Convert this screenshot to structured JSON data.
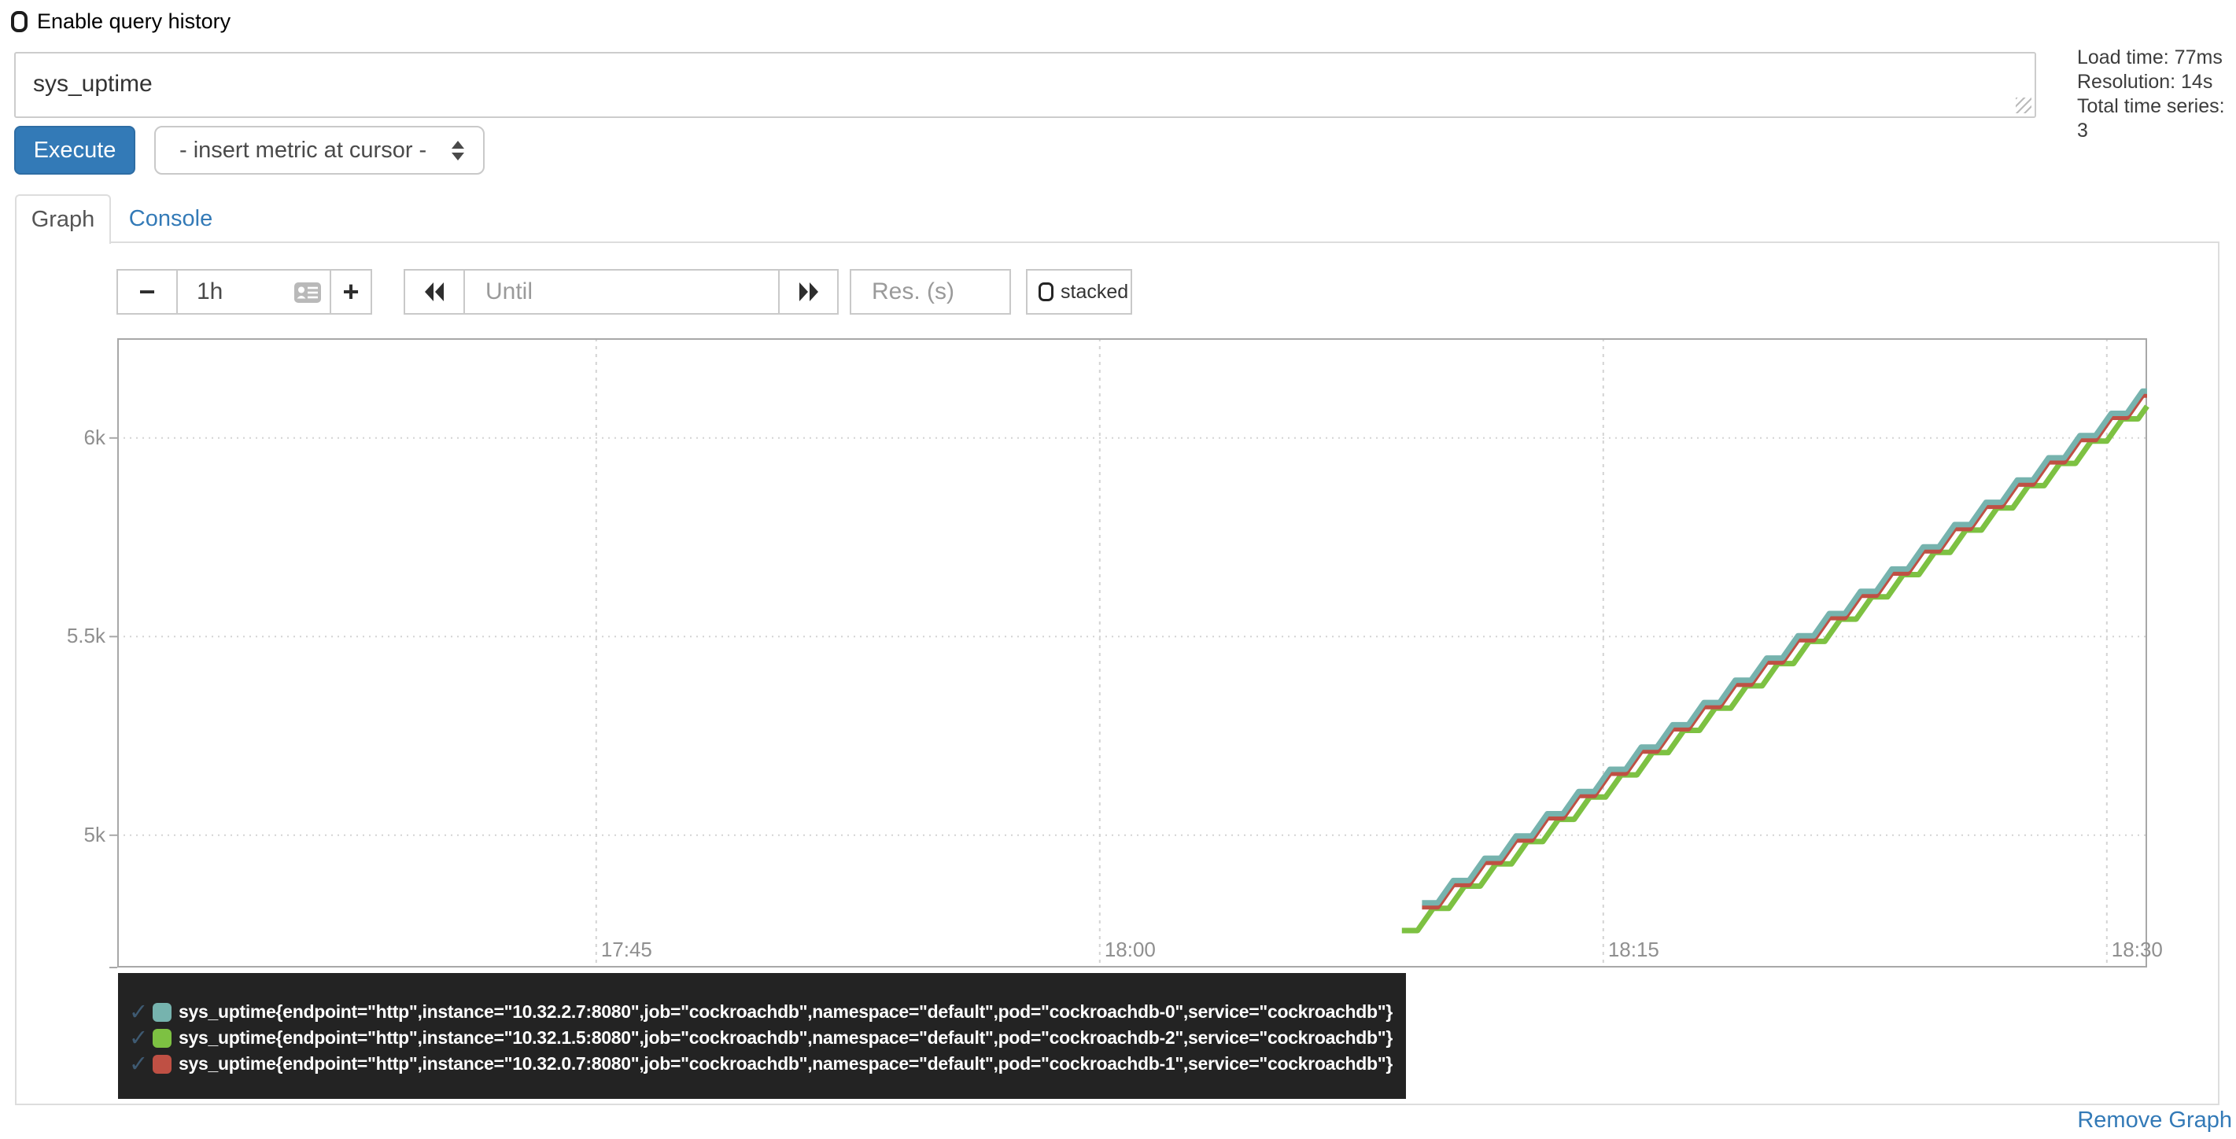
{
  "header": {
    "enable_query_history": {
      "label": "Enable query history",
      "checked": false
    },
    "query_input": {
      "value": "sys_uptime"
    },
    "stats": {
      "lines": [
        "Load time: 77ms",
        "Resolution: 14s",
        "Total time series: 3"
      ]
    }
  },
  "toolbar": {
    "execute": "Execute",
    "metric_select": "- insert metric at cursor -"
  },
  "tabs": {
    "items": [
      {
        "label": "Graph",
        "active": true
      },
      {
        "label": "Console",
        "active": false
      }
    ]
  },
  "graph_controls": {
    "range_decrease": "−",
    "range_value": "1h",
    "range_increase": "+",
    "until_placeholder": "Until",
    "res_placeholder": "Res. (s)",
    "stacked": {
      "label": "stacked",
      "checked": false
    }
  },
  "footer": {
    "remove_graph": "Remove Graph"
  },
  "icons": {
    "checkbox_unchecked": "rounded-square outline",
    "select_arrows": "up+down triangles",
    "rewind": "double left solid triangles",
    "forward": "double right solid triangles",
    "datetime_picker": "gray contact-card glyph",
    "series_check": "✓",
    "resize_grip": "diagonal hatch lines"
  },
  "colors": {
    "accent": "#337ab7",
    "panel_border": "#dddddd",
    "input_border": "#c9c9c9",
    "axis_text": "#8f8f8f",
    "grid_line": "#d4d4d4",
    "plot_border": "#a8a8a8",
    "legend_bg": "#232323",
    "legend_check": "#3e5a72",
    "series_teal": "#76b3ae",
    "series_green": "#7dc142",
    "series_red": "#bf5044"
  },
  "chart_data": {
    "type": "line",
    "line_interpolation": "stair-step (uptime counter sampled every 14s)",
    "resolution_seconds": 14,
    "x_axis": {
      "range_minutes": [
        1050.73,
        1111.2
      ],
      "range_labels": [
        "~17:31",
        "~18:31"
      ],
      "ticks": [
        {
          "label": "17:45",
          "minute": 1065
        },
        {
          "label": "18:00",
          "minute": 1080
        },
        {
          "label": "18:15",
          "minute": 1095
        },
        {
          "label": "18:30",
          "minute": 1110
        }
      ]
    },
    "y_axis": {
      "unit": "seconds of uptime",
      "range": [
        4667,
        6251
      ],
      "ticks": [
        {
          "label": "6k",
          "value": 6000
        },
        {
          "label": "5.5k",
          "value": 5500
        },
        {
          "label": "5k",
          "value": 5000
        }
      ]
    },
    "series": [
      {
        "name": "sys_uptime{endpoint=\"http\",instance=\"10.32.2.7:8080\",job=\"cockroachdb\",namespace=\"default\",pod=\"cockroachdb-0\",service=\"cockroachdb\"}",
        "color": "#76b3ae",
        "enabled": true,
        "start_minute": 1089.6,
        "start_time": "18:09:36",
        "start_value": 4830,
        "end_value": 6126,
        "slope_per_second": 1,
        "points_preview": [
          [
            "18:10",
            4854
          ],
          [
            "18:15",
            5154
          ],
          [
            "18:20",
            5454
          ],
          [
            "18:25",
            5754
          ],
          [
            "18:30",
            6054
          ]
        ]
      },
      {
        "name": "sys_uptime{endpoint=\"http\",instance=\"10.32.1.5:8080\",job=\"cockroachdb\",namespace=\"default\",pod=\"cockroachdb-2\",service=\"cockroachdb\"}",
        "color": "#7dc142",
        "enabled": true,
        "start_minute": 1089.0,
        "start_time": "18:09:00",
        "start_value": 4760,
        "end_value": 6092,
        "slope_per_second": 1,
        "points_preview": [
          [
            "18:10",
            4820
          ],
          [
            "18:15",
            5120
          ],
          [
            "18:20",
            5420
          ],
          [
            "18:25",
            5720
          ],
          [
            "18:30",
            6020
          ]
        ]
      },
      {
        "name": "sys_uptime{endpoint=\"http\",instance=\"10.32.0.7:8080\",job=\"cockroachdb\",namespace=\"default\",pod=\"cockroachdb-1\",service=\"cockroachdb\"}",
        "color": "#bf5044",
        "enabled": true,
        "start_minute": 1089.6,
        "start_time": "18:09:36",
        "start_value": 4820,
        "end_value": 6116,
        "slope_per_second": 1,
        "points_preview": [
          [
            "18:10",
            4844
          ],
          [
            "18:15",
            5144
          ],
          [
            "18:20",
            5444
          ],
          [
            "18:25",
            5744
          ],
          [
            "18:30",
            6044
          ]
        ]
      }
    ],
    "draw_order": [
      1,
      2,
      0
    ],
    "legend_position": "bottom-left, dark box"
  }
}
